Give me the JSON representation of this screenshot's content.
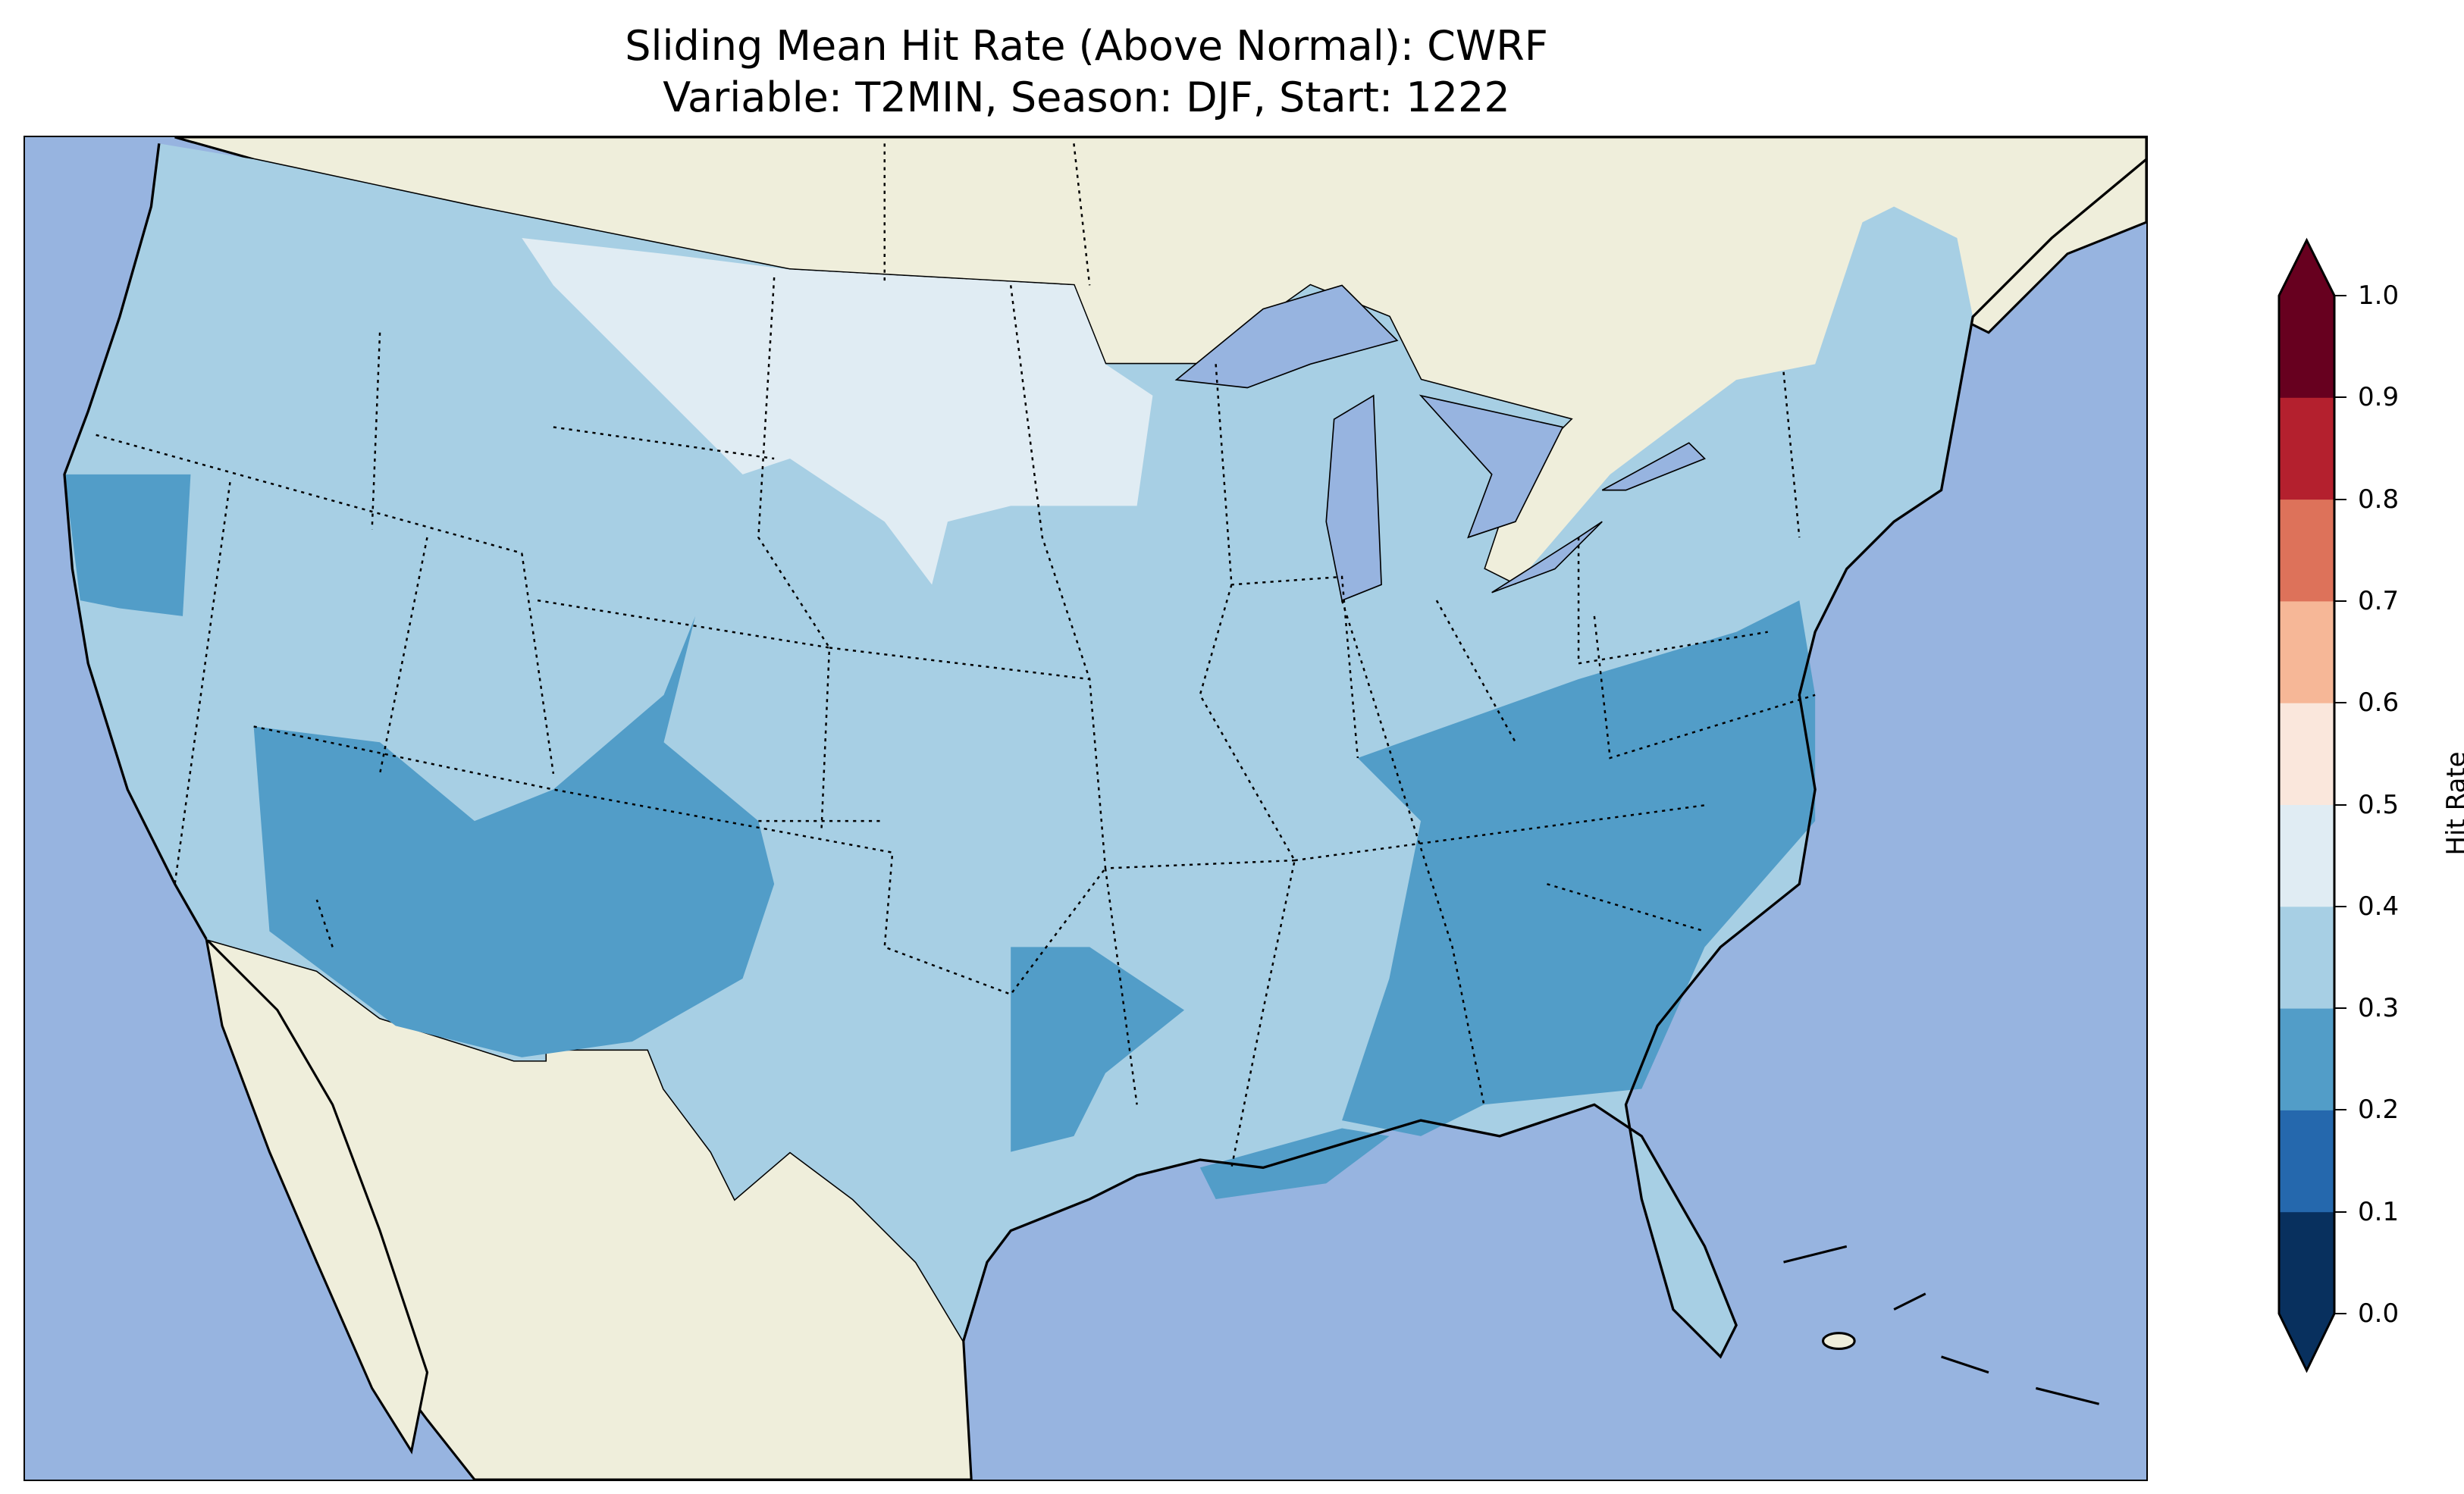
{
  "title": {
    "line1": "Sliding Mean Hit Rate (Above Normal): CWRF",
    "line2": "Variable: T2MIN, Season: DJF, Start: 1222"
  },
  "colorbar": {
    "label": "Hit Rate",
    "ticks": [
      "0.0",
      "0.1",
      "0.2",
      "0.3",
      "0.4",
      "0.5",
      "0.6",
      "0.7",
      "0.8",
      "0.9",
      "1.0"
    ],
    "levels": [
      0,
      0.1,
      0.2,
      0.3,
      0.4,
      0.5,
      0.6,
      0.7,
      0.8,
      0.9,
      1.0
    ],
    "colors": [
      "#08305e",
      "#2568ad",
      "#529dc8",
      "#a7cfe4",
      "#e0ecf3",
      "#fae7dc",
      "#f6b797",
      "#dd725a",
      "#b4202e",
      "#67001f"
    ],
    "extend": "both"
  },
  "map": {
    "ocean_color": "#97b4e0",
    "land_color": "#efeedb",
    "dominant_range": "0.3-0.4",
    "regions": [
      {
        "area": "northern plains",
        "range": "0.4-0.5"
      },
      {
        "area": "southwest",
        "range": "0.2-0.3"
      },
      {
        "area": "southeast",
        "range": "0.2-0.3"
      },
      {
        "area": "california coast",
        "range": "0.2-0.3"
      }
    ]
  }
}
